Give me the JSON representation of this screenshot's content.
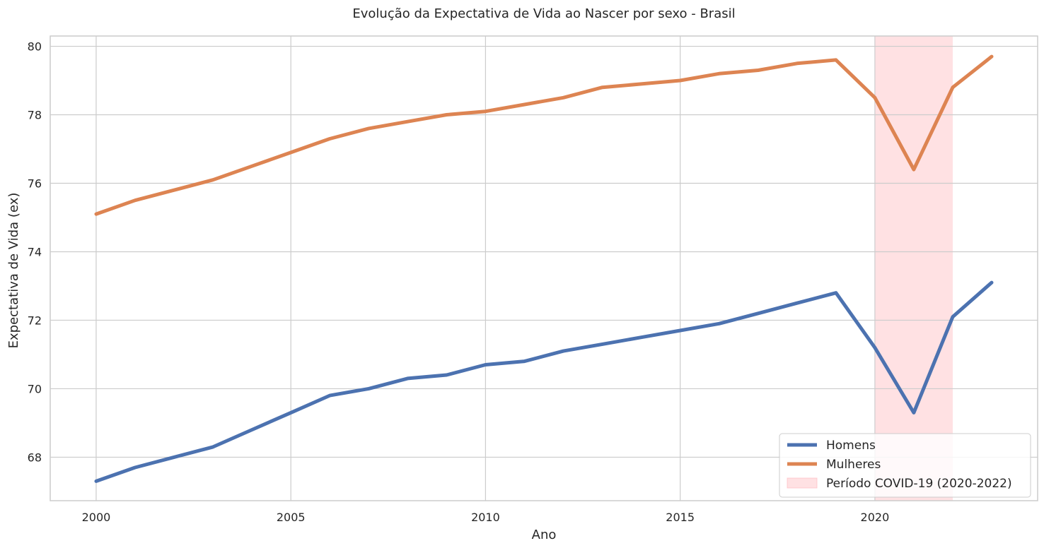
{
  "chart_data": {
    "type": "line",
    "title": "Evolução da Expectativa de Vida ao Nascer por sexo - Brasil",
    "xlabel": "Ano",
    "ylabel": "Expectativa de Vida (ex)",
    "xlim": [
      1998.82,
      2024.18
    ],
    "ylim": [
      66.73,
      80.3
    ],
    "x_ticks": [
      2000,
      2005,
      2010,
      2015,
      2020
    ],
    "y_ticks": [
      68,
      70,
      72,
      74,
      76,
      78,
      80
    ],
    "grid": true,
    "legend_position": "lower right",
    "x": [
      2000,
      2001,
      2002,
      2003,
      2004,
      2005,
      2006,
      2007,
      2008,
      2009,
      2010,
      2011,
      2012,
      2013,
      2014,
      2015,
      2016,
      2017,
      2018,
      2019,
      2020,
      2021,
      2022,
      2023
    ],
    "series": [
      {
        "name": "Homens",
        "color": "#4c72b0",
        "values": [
          67.3,
          67.7,
          68.0,
          68.3,
          68.8,
          69.3,
          69.8,
          70.0,
          70.3,
          70.4,
          70.7,
          70.8,
          71.1,
          71.3,
          71.5,
          71.7,
          71.9,
          72.2,
          72.5,
          72.8,
          71.2,
          69.3,
          72.1,
          73.1
        ]
      },
      {
        "name": "Mulheres",
        "color": "#dd8452",
        "values": [
          75.1,
          75.5,
          75.8,
          76.1,
          76.5,
          76.9,
          77.3,
          77.6,
          77.8,
          78.0,
          78.1,
          78.3,
          78.5,
          78.8,
          78.9,
          79.0,
          79.2,
          79.3,
          79.5,
          79.6,
          78.5,
          76.4,
          78.8,
          79.7
        ]
      }
    ],
    "shaded_region": {
      "label": "Período COVID-19 (2020-2022)",
      "x_start": 2020,
      "x_end": 2022,
      "color": "#ffb3ba"
    }
  }
}
